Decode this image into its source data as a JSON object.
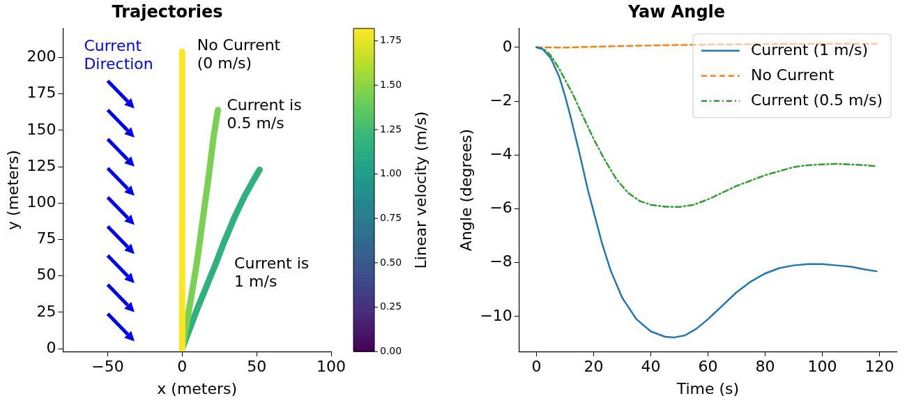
{
  "chart_data": [
    {
      "type": "line",
      "title": "Trajectories",
      "xlabel": "x (meters)",
      "ylabel": "y (meters)",
      "clabel": "Linear velocity (m/s)",
      "legend": false,
      "grid": false,
      "marker": "none",
      "xlim": [
        -80,
        100
      ],
      "xticks": [
        {
          "value": -50,
          "label": "−50"
        },
        0,
        50,
        100
      ],
      "ylim": [
        -2,
        220
      ],
      "yticks": [
        0,
        25,
        50,
        75,
        100,
        125,
        150,
        175,
        200
      ],
      "clim": [
        0,
        1.82
      ],
      "cticks": [
        {
          "value": 0,
          "label": "0.00"
        },
        0.25,
        {
          "value": 0.5,
          "label": "0.50"
        },
        0.75,
        {
          "value": 1,
          "label": "1.00"
        },
        1.25,
        {
          "value": 1.5,
          "label": "1.50"
        },
        1.75
      ],
      "series": [
        {
          "color": "#fde725",
          "x": [
            0,
            0,
            0
          ],
          "values": [
            0,
            100,
            204
          ]
        },
        {
          "color": "#7ad151",
          "x": [
            0,
            6,
            10,
            14,
            18,
            21,
            24
          ],
          "values": [
            0,
            35,
            60,
            90,
            120,
            145,
            164
          ]
        },
        {
          "color": "#2db27d",
          "x": [
            0,
            10,
            16,
            22,
            28,
            35,
            42,
            48,
            52
          ],
          "values": [
            0,
            27,
            42,
            57,
            73,
            90,
            105,
            116,
            123
          ]
        }
      ],
      "annotations": [
        "Current\nDirection",
        "No Current\n(0 m/s)",
        "Current is\n0.5 m/s",
        "Current is\n1 m/s"
      ]
    },
    {
      "type": "line",
      "title": "Yaw Angle",
      "xlabel": "Time (s)",
      "ylabel": "Angle (degrees)",
      "legend": "top right",
      "grid": false,
      "marker": "none",
      "xlim": [
        -6,
        126
      ],
      "xticks": [
        0,
        20,
        40,
        60,
        80,
        100,
        120
      ],
      "ylim": [
        -11.3,
        0.7
      ],
      "yticks": [
        0,
        {
          "value": -2,
          "label": "−2"
        },
        {
          "value": -4,
          "label": "−4"
        },
        {
          "value": -6,
          "label": "−6"
        },
        {
          "value": -8,
          "label": "−8"
        },
        {
          "value": -10,
          "label": "−10"
        }
      ],
      "series": [
        {
          "name": "Current (1 m/s)",
          "color": "#1f77b4",
          "line_style": "solid",
          "x": [
            0,
            2,
            5,
            8,
            10,
            12,
            15,
            18,
            20,
            23,
            26,
            30,
            35,
            40,
            45,
            48,
            52,
            56,
            60,
            65,
            70,
            75,
            80,
            85,
            90,
            95,
            100,
            105,
            110,
            115,
            119
          ],
          "values": [
            0,
            -0.05,
            -0.4,
            -1.1,
            -1.8,
            -2.6,
            -3.9,
            -5.3,
            -6.1,
            -7.3,
            -8.3,
            -9.3,
            -10.1,
            -10.55,
            -10.75,
            -10.78,
            -10.7,
            -10.45,
            -10.1,
            -9.6,
            -9.1,
            -8.7,
            -8.4,
            -8.2,
            -8.1,
            -8.05,
            -8.05,
            -8.1,
            -8.15,
            -8.25,
            -8.32
          ]
        },
        {
          "name": "No Current",
          "color": "#ff7f0e",
          "line_style": "dashed",
          "x": [
            0,
            10,
            20,
            40,
            60,
            80,
            100,
            119
          ],
          "values": [
            0,
            -0.01,
            0.02,
            0.07,
            0.1,
            0.12,
            0.13,
            0.13
          ]
        },
        {
          "name": "Current (0.5 m/s)",
          "color": "#2ca02c",
          "line_style": "dashdot",
          "x": [
            0,
            3,
            5,
            8,
            10,
            13,
            16,
            20,
            24,
            28,
            32,
            36,
            40,
            45,
            50,
            55,
            60,
            65,
            70,
            75,
            80,
            85,
            90,
            95,
            100,
            105,
            110,
            115,
            119
          ],
          "values": [
            0,
            -0.1,
            -0.3,
            -0.8,
            -1.2,
            -1.8,
            -2.5,
            -3.4,
            -4.2,
            -4.9,
            -5.4,
            -5.7,
            -5.85,
            -5.92,
            -5.93,
            -5.85,
            -5.65,
            -5.4,
            -5.15,
            -4.95,
            -4.75,
            -4.6,
            -4.45,
            -4.38,
            -4.35,
            -4.33,
            -4.35,
            -4.38,
            -4.42
          ]
        }
      ]
    }
  ]
}
